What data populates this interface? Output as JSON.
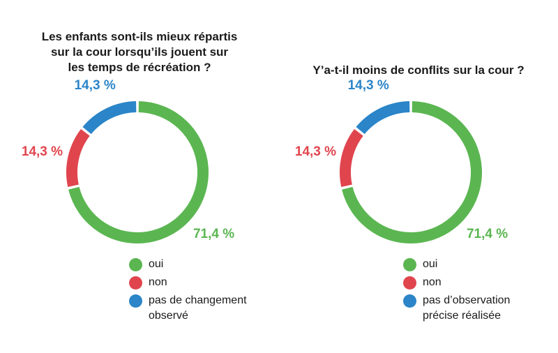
{
  "colors": {
    "oui": "#5bb651",
    "non": "#e0454e",
    "neutral": "#2b85c8"
  },
  "chart_data": [
    {
      "type": "pie",
      "title": "Les enfants sont-ils mieux répartis\nsur la cour lorsqu’ils jouent sur\nles temps de récréation ?",
      "categories": [
        "oui",
        "non",
        "pas de changement\nobservé"
      ],
      "values": [
        71.4,
        14.3,
        14.3
      ],
      "labels": [
        "71,4 %",
        "14,3 %",
        "14,3 %"
      ],
      "colors": [
        "#5bb651",
        "#e0454e",
        "#2b85c8"
      ],
      "legend": "bottom"
    },
    {
      "type": "pie",
      "title": "Y’a-t-il moins de conflits sur la cour ?",
      "categories": [
        "oui",
        "non",
        "pas d’observation\nprécise réalisée"
      ],
      "values": [
        71.4,
        14.3,
        14.3
      ],
      "labels": [
        "71,4 %",
        "14,3 %",
        "14,3 %"
      ],
      "colors": [
        "#5bb651",
        "#e0454e",
        "#2b85c8"
      ],
      "legend": "bottom"
    }
  ]
}
